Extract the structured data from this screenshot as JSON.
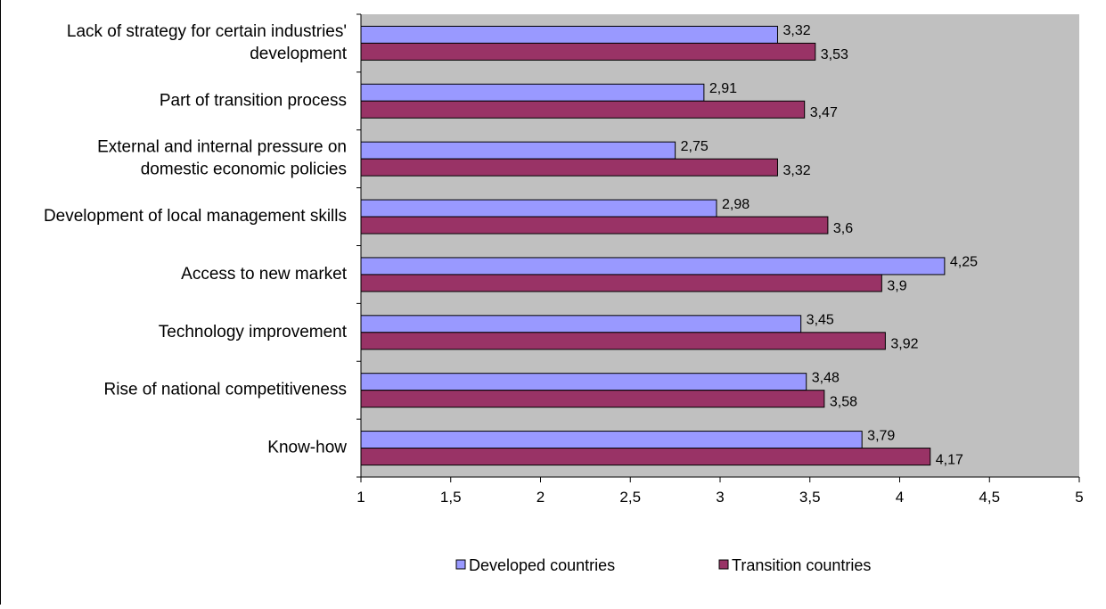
{
  "chart_data": {
    "type": "bar",
    "orientation": "horizontal",
    "title": "",
    "xlabel": "",
    "ylabel": "",
    "xlim": [
      1,
      5
    ],
    "x_ticks": [
      "1",
      "1,5",
      "2",
      "2,5",
      "3",
      "3,5",
      "4",
      "4,5",
      "5"
    ],
    "x_tick_values": [
      1,
      1.5,
      2,
      2.5,
      3,
      3.5,
      4,
      4.5,
      5
    ],
    "grid": false,
    "plot_background": "#c0c0c0",
    "legend_position": "bottom",
    "categories": [
      [
        "Lack of strategy for certain industries'",
        "development"
      ],
      [
        "Part of transition process"
      ],
      [
        "External and internal pressure on",
        "domestic economic policies"
      ],
      [
        "Development of local management skills"
      ],
      [
        "Access to new market"
      ],
      [
        "Technology improvement"
      ],
      [
        "Rise of national competitiveness"
      ],
      [
        "Know-how"
      ]
    ],
    "series": [
      {
        "name": "Developed countries",
        "color": "#9999ff",
        "values": [
          3.32,
          2.91,
          2.75,
          2.98,
          4.25,
          3.45,
          3.48,
          3.79
        ],
        "labels": [
          "3,32",
          "2,91",
          "2,75",
          "2,98",
          "4,25",
          "3,45",
          "3,48",
          "3,79"
        ]
      },
      {
        "name": "Transition countries",
        "color": "#993366",
        "values": [
          3.53,
          3.47,
          3.32,
          3.6,
          3.9,
          3.92,
          3.58,
          4.17
        ],
        "labels": [
          "3,53",
          "3,47",
          "3,32",
          "3,6",
          "3,9",
          "3,92",
          "3,58",
          "4,17"
        ]
      }
    ]
  }
}
